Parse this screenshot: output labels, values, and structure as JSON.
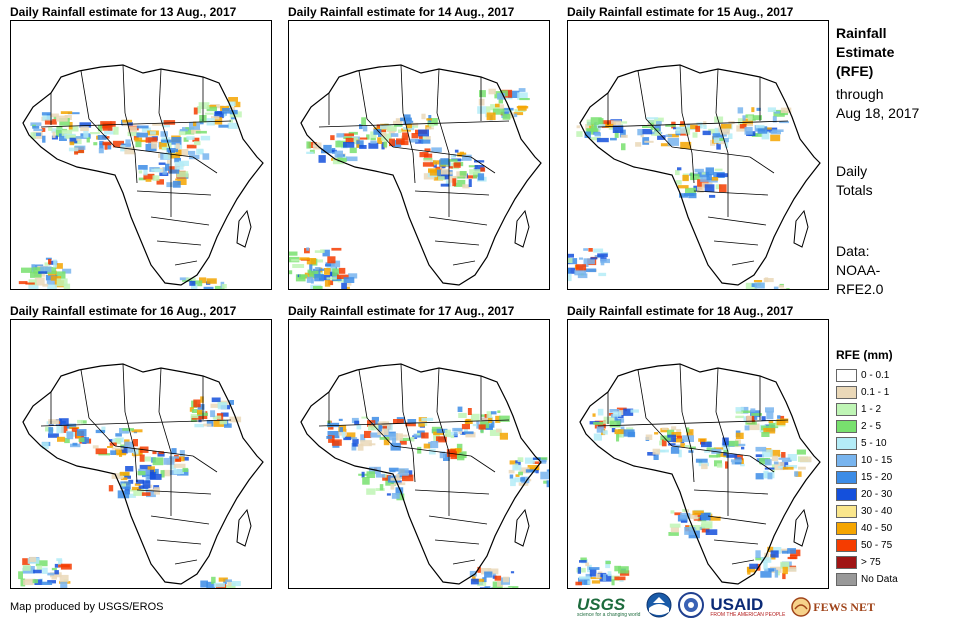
{
  "panels": [
    {
      "title": "Daily Rainfall estimate for 13 Aug., 2017"
    },
    {
      "title": "Daily Rainfall estimate for 14 Aug., 2017"
    },
    {
      "title": "Daily Rainfall estimate for 15 Aug., 2017"
    },
    {
      "title": "Daily Rainfall estimate for 16 Aug., 2017"
    },
    {
      "title": "Daily Rainfall estimate for 17 Aug., 2017"
    },
    {
      "title": "Daily Rainfall estimate for 18 Aug., 2017"
    }
  ],
  "sidebar": {
    "heading_lines": [
      "Rainfall",
      "Estimate",
      "(RFE)"
    ],
    "through_lines": [
      "through",
      "Aug 18, 2017"
    ],
    "totals_lines": [
      "Daily",
      "Totals"
    ],
    "data_lines": [
      "Data:",
      "NOAA-",
      "RFE2.0"
    ]
  },
  "legend": {
    "title": "RFE (mm)",
    "items": [
      {
        "label": "0 - 0.1",
        "color": "#ffffff"
      },
      {
        "label": "0.1 - 1",
        "color": "#ead8b8"
      },
      {
        "label": "1 - 2",
        "color": "#bff5b5"
      },
      {
        "label": "2 - 5",
        "color": "#78e06e"
      },
      {
        "label": "5 - 10",
        "color": "#b4ecf7"
      },
      {
        "label": "10 - 15",
        "color": "#78b4ee"
      },
      {
        "label": "15 - 20",
        "color": "#3c8ce6"
      },
      {
        "label": "20 - 30",
        "color": "#1450dc"
      },
      {
        "label": "30 - 40",
        "color": "#fae68c"
      },
      {
        "label": "40 - 50",
        "color": "#f5a500"
      },
      {
        "label": "50 - 75",
        "color": "#f53c00"
      },
      {
        "label": "> 75",
        "color": "#a01414"
      },
      {
        "label": "No Data",
        "color": "#999999"
      }
    ]
  },
  "footer": {
    "credit": "Map produced by USGS/EROS",
    "logos": {
      "usgs": "USGS",
      "usgs_tag": "science for a changing world",
      "noaa": "NOAA",
      "usaid": "USAID",
      "usaid_tag": "FROM THE AMERICAN PEOPLE",
      "fewsnet": "FEWS NET"
    }
  }
}
